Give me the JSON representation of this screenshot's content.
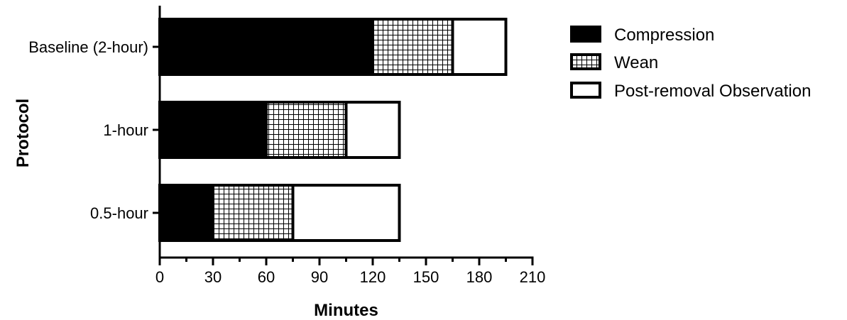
{
  "chart_data": {
    "type": "bar",
    "orientation": "horizontal",
    "stacked": true,
    "categories": [
      "Baseline (2-hour)",
      "1-hour",
      "0.5-hour"
    ],
    "series": [
      {
        "name": "Compression",
        "values": [
          120,
          60,
          30
        ],
        "fill": "solid",
        "color": "#000000"
      },
      {
        "name": "Wean",
        "values": [
          45,
          45,
          45
        ],
        "fill": "grid",
        "color": "#000000"
      },
      {
        "name": "Post-removal Observation",
        "values": [
          30,
          30,
          60
        ],
        "fill": "none",
        "color": "#ffffff"
      }
    ],
    "xlabel": "Minutes",
    "ylabel": "Protocol",
    "xlim": [
      0,
      210
    ],
    "xticks": [
      0,
      30,
      60,
      90,
      120,
      150,
      180,
      210
    ],
    "xtick_labels": [
      "0",
      "30",
      "60",
      "90",
      "120",
      "150",
      "180",
      "210"
    ],
    "grid": false,
    "legend_position": "top-right"
  }
}
